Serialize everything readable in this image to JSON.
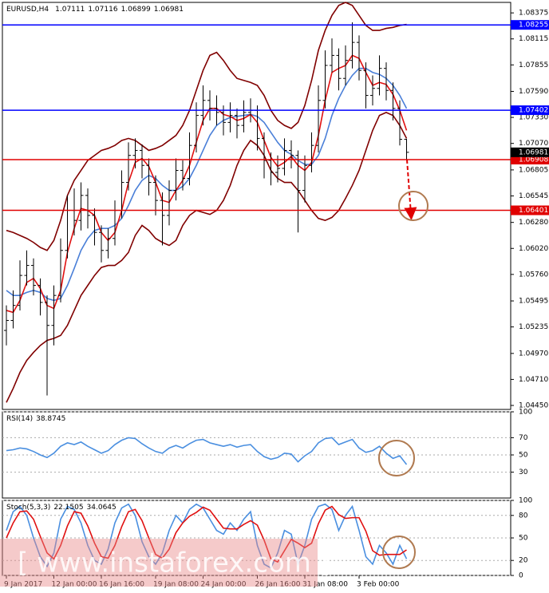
{
  "chart_data": [
    {
      "type": "candlestick",
      "title": "EURUSD,H4",
      "categories": [
        "9 Jan 2017",
        null,
        null,
        null,
        null,
        null,
        null,
        "12 Jan 00:00",
        null,
        null,
        null,
        null,
        null,
        null,
        "16 Jan 16:00",
        null,
        null,
        null,
        null,
        null,
        null,
        null,
        "19 Jan 08:00",
        null,
        null,
        null,
        null,
        null,
        null,
        "24 Jan 00:00",
        null,
        null,
        null,
        null,
        null,
        null,
        null,
        "26 Jan 16:00",
        null,
        null,
        null,
        null,
        null,
        null,
        "31 Jan 08:00",
        null,
        null,
        null,
        null,
        null,
        null,
        null,
        "3 Feb 00:00",
        null,
        null,
        null,
        null,
        null,
        null,
        null
      ],
      "open": [
        1.052,
        1.053,
        1.0545,
        1.0575,
        1.0585,
        1.0565,
        1.0548,
        1.0525,
        1.0555,
        1.06,
        1.064,
        1.063,
        1.0655,
        1.0635,
        1.0618,
        1.06,
        1.0612,
        1.064,
        1.0668,
        1.0695,
        1.07,
        1.0685,
        1.0668,
        1.065,
        1.0635,
        1.066,
        1.068,
        1.0672,
        1.0705,
        1.0735,
        1.075,
        1.0742,
        1.0738,
        1.0728,
        1.0735,
        1.0725,
        1.0738,
        1.074,
        1.0712,
        1.069,
        1.0678,
        1.0682,
        1.07,
        1.0695,
        1.066,
        1.0685,
        1.0705,
        1.075,
        1.0785,
        1.0795,
        1.0772,
        1.079,
        1.0808,
        1.078,
        1.0755,
        1.0762,
        1.0782,
        1.076,
        1.0742,
        1.07111
      ],
      "high": [
        1.0545,
        1.056,
        1.059,
        1.06,
        1.0592,
        1.0572,
        1.0555,
        1.0565,
        1.0612,
        1.0655,
        1.0662,
        1.0668,
        1.0662,
        1.0642,
        1.0625,
        1.0622,
        1.065,
        1.068,
        1.0708,
        1.0712,
        1.0706,
        1.0692,
        1.0675,
        1.0658,
        1.067,
        1.0692,
        1.069,
        1.0718,
        1.0748,
        1.0765,
        1.076,
        1.0755,
        1.0745,
        1.0748,
        1.0742,
        1.075,
        1.0752,
        1.0745,
        1.0718,
        1.0698,
        1.0695,
        1.0712,
        1.071,
        1.07,
        1.0695,
        1.0718,
        1.0765,
        1.08,
        1.0812,
        1.0802,
        1.0805,
        1.0828,
        1.0815,
        1.0788,
        1.0775,
        1.0795,
        1.0788,
        1.0768,
        1.075,
        1.07116
      ],
      "low": [
        1.0505,
        1.0522,
        1.054,
        1.0565,
        1.0555,
        1.0535,
        1.0455,
        1.0505,
        1.0548,
        1.0592,
        1.0615,
        1.062,
        1.0622,
        1.0605,
        1.0588,
        1.0592,
        1.0605,
        1.0632,
        1.066,
        1.0682,
        1.0672,
        1.0655,
        1.0635,
        1.0605,
        1.0625,
        1.065,
        1.066,
        1.0665,
        1.0698,
        1.0725,
        1.073,
        1.0725,
        1.0715,
        1.0718,
        1.0712,
        1.0718,
        1.0728,
        1.07,
        1.0672,
        1.0665,
        1.0668,
        1.0675,
        1.0682,
        1.0618,
        1.0648,
        1.0678,
        1.0698,
        1.0742,
        1.0778,
        1.076,
        1.0765,
        1.0782,
        1.077,
        1.0742,
        1.0745,
        1.0755,
        1.075,
        1.073,
        1.0705,
        1.06899
      ],
      "close": [
        1.053,
        1.0545,
        1.0575,
        1.0585,
        1.0565,
        1.0548,
        1.0525,
        1.0555,
        1.06,
        1.064,
        1.063,
        1.0655,
        1.0635,
        1.0618,
        1.06,
        1.0612,
        1.064,
        1.0668,
        1.0695,
        1.07,
        1.0685,
        1.0668,
        1.065,
        1.0635,
        1.066,
        1.068,
        1.0672,
        1.0705,
        1.0735,
        1.075,
        1.0742,
        1.0738,
        1.0728,
        1.0735,
        1.0725,
        1.0738,
        1.074,
        1.0712,
        1.069,
        1.0678,
        1.0682,
        1.07,
        1.0695,
        1.066,
        1.0685,
        1.0705,
        1.075,
        1.0785,
        1.0795,
        1.0772,
        1.079,
        1.0808,
        1.078,
        1.0755,
        1.0762,
        1.0782,
        1.076,
        1.0742,
        1.07111,
        1.06981
      ],
      "color": "#000000",
      "series": [
        {
          "color": "#800000",
          "values": [
            1.062,
            1.0618,
            1.0615,
            1.0612,
            1.0608,
            1.0603,
            1.06,
            1.061,
            1.063,
            1.0655,
            1.067,
            1.068,
            1.069,
            1.0695,
            1.07,
            1.0702,
            1.0705,
            1.071,
            1.0712,
            1.071,
            1.0705,
            1.07,
            1.0702,
            1.0705,
            1.071,
            1.0715,
            1.0725,
            1.074,
            1.076,
            1.078,
            1.0795,
            1.0798,
            1.079,
            1.078,
            1.0772,
            1.077,
            1.0768,
            1.0765,
            1.0755,
            1.074,
            1.073,
            1.0725,
            1.0722,
            1.0728,
            1.0745,
            1.077,
            1.08,
            1.082,
            1.0835,
            1.0845,
            1.0848,
            1.0845,
            1.0835,
            1.0825,
            1.082,
            1.082,
            1.0822,
            1.0823,
            1.0825,
            1.0826
          ]
        },
        {
          "color": "#800000",
          "values": [
            1.0448,
            1.0462,
            1.0478,
            1.049,
            1.0498,
            1.0505,
            1.051,
            1.0512,
            1.0515,
            1.0525,
            1.054,
            1.0555,
            1.0565,
            1.0575,
            1.0583,
            1.0585,
            1.0585,
            1.059,
            1.0598,
            1.0615,
            1.0625,
            1.062,
            1.0612,
            1.0608,
            1.0605,
            1.061,
            1.0625,
            1.0635,
            1.064,
            1.0638,
            1.0636,
            1.064,
            1.065,
            1.0665,
            1.0685,
            1.07,
            1.071,
            1.0705,
            1.0695,
            1.068,
            1.0672,
            1.0668,
            1.0668,
            1.066,
            1.065,
            1.064,
            1.0632,
            1.063,
            1.0633,
            1.064,
            1.0652,
            1.0665,
            1.068,
            1.07,
            1.072,
            1.0735,
            1.0738,
            1.0735,
            1.0725,
            1.0712
          ]
        },
        {
          "color": "#4a7fd8",
          "values": [
            1.056,
            1.0555,
            1.0555,
            1.0558,
            1.056,
            1.0558,
            1.0552,
            1.055,
            1.0552,
            1.0565,
            1.0582,
            1.06,
            1.0612,
            1.062,
            1.0622,
            1.0622,
            1.0625,
            1.0632,
            1.0645,
            1.066,
            1.067,
            1.0675,
            1.0672,
            1.0665,
            1.066,
            1.066,
            1.0664,
            1.0672,
            1.0685,
            1.07,
            1.0715,
            1.0725,
            1.073,
            1.0733,
            1.0734,
            1.0735,
            1.0736,
            1.0734,
            1.0728,
            1.0718,
            1.0708,
            1.07,
            1.0696,
            1.069,
            1.0686,
            1.0686,
            1.0695,
            1.0712,
            1.0735,
            1.0752,
            1.0765,
            1.0775,
            1.0782,
            1.0782,
            1.0778,
            1.0776,
            1.0772,
            1.0765,
            1.0755,
            1.0742
          ]
        },
        {
          "color": "#e01010",
          "values": [
            1.054,
            1.0538,
            1.055,
            1.0568,
            1.0572,
            1.0562,
            1.0545,
            1.0542,
            1.056,
            1.0598,
            1.0622,
            1.0642,
            1.064,
            1.0635,
            1.0618,
            1.061,
            1.0618,
            1.064,
            1.0668,
            1.0688,
            1.0692,
            1.0684,
            1.0668,
            1.065,
            1.0648,
            1.066,
            1.067,
            1.0685,
            1.0708,
            1.073,
            1.0742,
            1.0742,
            1.0736,
            1.0734,
            1.073,
            1.0732,
            1.0736,
            1.0728,
            1.071,
            1.0693,
            1.0684,
            1.0688,
            1.0694,
            1.0685,
            1.068,
            1.0688,
            1.0715,
            1.075,
            1.0778,
            1.0782,
            1.0785,
            1.0795,
            1.0792,
            1.0778,
            1.0765,
            1.0768,
            1.0766,
            1.0756,
            1.074,
            1.072
          ]
        }
      ],
      "levels": [
        {
          "value": 1.08255,
          "color": "#0000ff"
        },
        {
          "value": 1.07402,
          "color": "#0000ff"
        },
        {
          "value": 1.06908,
          "color": "#e00000"
        },
        {
          "value": 1.06401,
          "color": "#e00000"
        }
      ],
      "ylim": [
        1.0441,
        1.0848
      ],
      "yticks": [
        1.08375,
        1.08115,
        1.07855,
        {
          "value": 1.0759,
          "label": "1.07590"
        },
        {
          "value": 1.0733,
          "label": "1.07330"
        },
        {
          "value": 1.0707,
          "label": "1.07070"
        },
        1.06805,
        1.06545,
        {
          "value": 1.0628,
          "label": "1.06280"
        },
        {
          "value": 1.0602,
          "label": "1.06020"
        },
        {
          "value": 1.0576,
          "label": "1.05760"
        },
        1.05495,
        1.05235,
        {
          "value": 1.0497,
          "label": "1.04970"
        },
        {
          "value": 1.0471,
          "label": "1.04710"
        },
        {
          "value": 1.0445,
          "label": "1.04450"
        }
      ]
    },
    {
      "type": "line",
      "title": "RSI(14)",
      "series": [
        {
          "color": "#4a8fe0",
          "values": [
            55,
            56,
            58,
            57,
            54,
            50,
            47,
            52,
            60,
            64,
            62,
            65,
            60,
            56,
            52,
            55,
            62,
            67,
            70,
            69,
            63,
            58,
            54,
            52,
            58,
            61,
            58,
            63,
            67,
            68,
            64,
            62,
            60,
            62,
            59,
            61,
            62,
            54,
            48,
            45,
            47,
            52,
            51,
            42,
            49,
            54,
            64,
            69,
            70,
            62,
            65,
            68,
            58,
            53,
            55,
            60,
            52,
            46,
            49,
            38.8745
          ]
        }
      ],
      "ylim": [
        0,
        100
      ],
      "yticks": [
        100,
        70,
        50,
        30
      ],
      "grid": true
    },
    {
      "type": "line",
      "title": "Stoch(5,3,3)",
      "series": [
        {
          "color": "#4a8fe0",
          "values": [
            60,
            85,
            92,
            80,
            50,
            25,
            12,
            30,
            75,
            92,
            88,
            70,
            40,
            20,
            15,
            35,
            70,
            90,
            95,
            80,
            45,
            25,
            15,
            30,
            60,
            80,
            70,
            88,
            95,
            90,
            75,
            60,
            55,
            70,
            60,
            75,
            85,
            40,
            15,
            10,
            30,
            60,
            55,
            15,
            40,
            75,
            92,
            95,
            88,
            60,
            80,
            92,
            60,
            25,
            15,
            40,
            30,
            15,
            40,
            22.1505
          ]
        },
        {
          "color": "#e01010",
          "values": [
            50,
            70,
            85,
            86,
            75,
            52,
            30,
            22,
            40,
            66,
            85,
            83,
            66,
            43,
            25,
            23,
            40,
            65,
            85,
            88,
            73,
            50,
            28,
            23,
            35,
            57,
            70,
            79,
            84,
            91,
            87,
            75,
            63,
            62,
            62,
            68,
            73,
            67,
            47,
            22,
            18,
            33,
            48,
            43,
            37,
            43,
            69,
            87,
            92,
            81,
            76,
            77,
            77,
            59,
            33,
            27,
            28,
            28,
            28,
            34.0645
          ]
        }
      ],
      "ylim": [
        0,
        100
      ],
      "yticks": [
        100,
        80,
        50,
        20,
        0
      ],
      "grid": true
    }
  ],
  "watermark": "[ www.instaforex.com ]"
}
